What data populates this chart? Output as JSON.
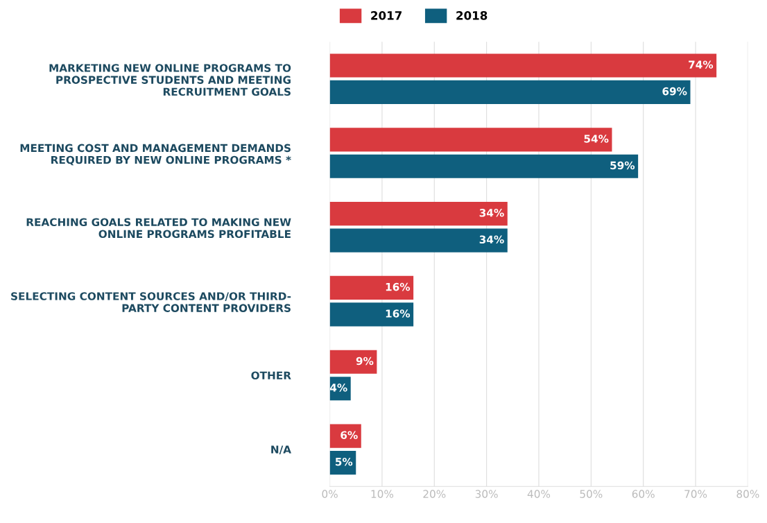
{
  "chart_data": {
    "type": "bar",
    "orientation": "horizontal",
    "categories": [
      "MARKETING NEW ONLINE PROGRAMS TO\nPROSPECTIVE STUDENTS AND MEETING\nRECRUITMENT GOALS",
      "MEETING COST AND MANAGEMENT DEMANDS\nREQUIRED BY NEW ONLINE PROGRAMS *",
      "REACHING GOALS RELATED TO MAKING NEW\nONLINE PROGRAMS PROFITABLE",
      "SELECTING CONTENT SOURCES AND/OR THIRD-\nPARTY CONTENT PROVIDERS",
      "OTHER",
      "N/A"
    ],
    "series": [
      {
        "name": "2017",
        "color": "#d93a3f",
        "values": [
          74,
          54,
          34,
          16,
          9,
          6
        ],
        "value_labels": [
          "74%",
          "54%",
          "34%",
          "16%",
          "9%",
          "6%"
        ]
      },
      {
        "name": "2018",
        "color": "#0f5f7e",
        "values": [
          69,
          59,
          34,
          16,
          4,
          5
        ],
        "value_labels": [
          "69%",
          "59%",
          "34%",
          "16%",
          "4%",
          "5%"
        ]
      }
    ],
    "xlim": [
      0,
      80
    ],
    "xticks": [
      {
        "value": 0,
        "label": "0%"
      },
      {
        "value": 10,
        "label": "10%"
      },
      {
        "value": 20,
        "label": "20%"
      },
      {
        "value": 30,
        "label": "30%"
      },
      {
        "value": 40,
        "label": "40%"
      },
      {
        "value": 50,
        "label": "50%"
      },
      {
        "value": 60,
        "label": "60%"
      },
      {
        "value": 70,
        "label": "70%"
      },
      {
        "value": 80,
        "label": "80%"
      }
    ],
    "grid": "x",
    "legend": "top"
  }
}
